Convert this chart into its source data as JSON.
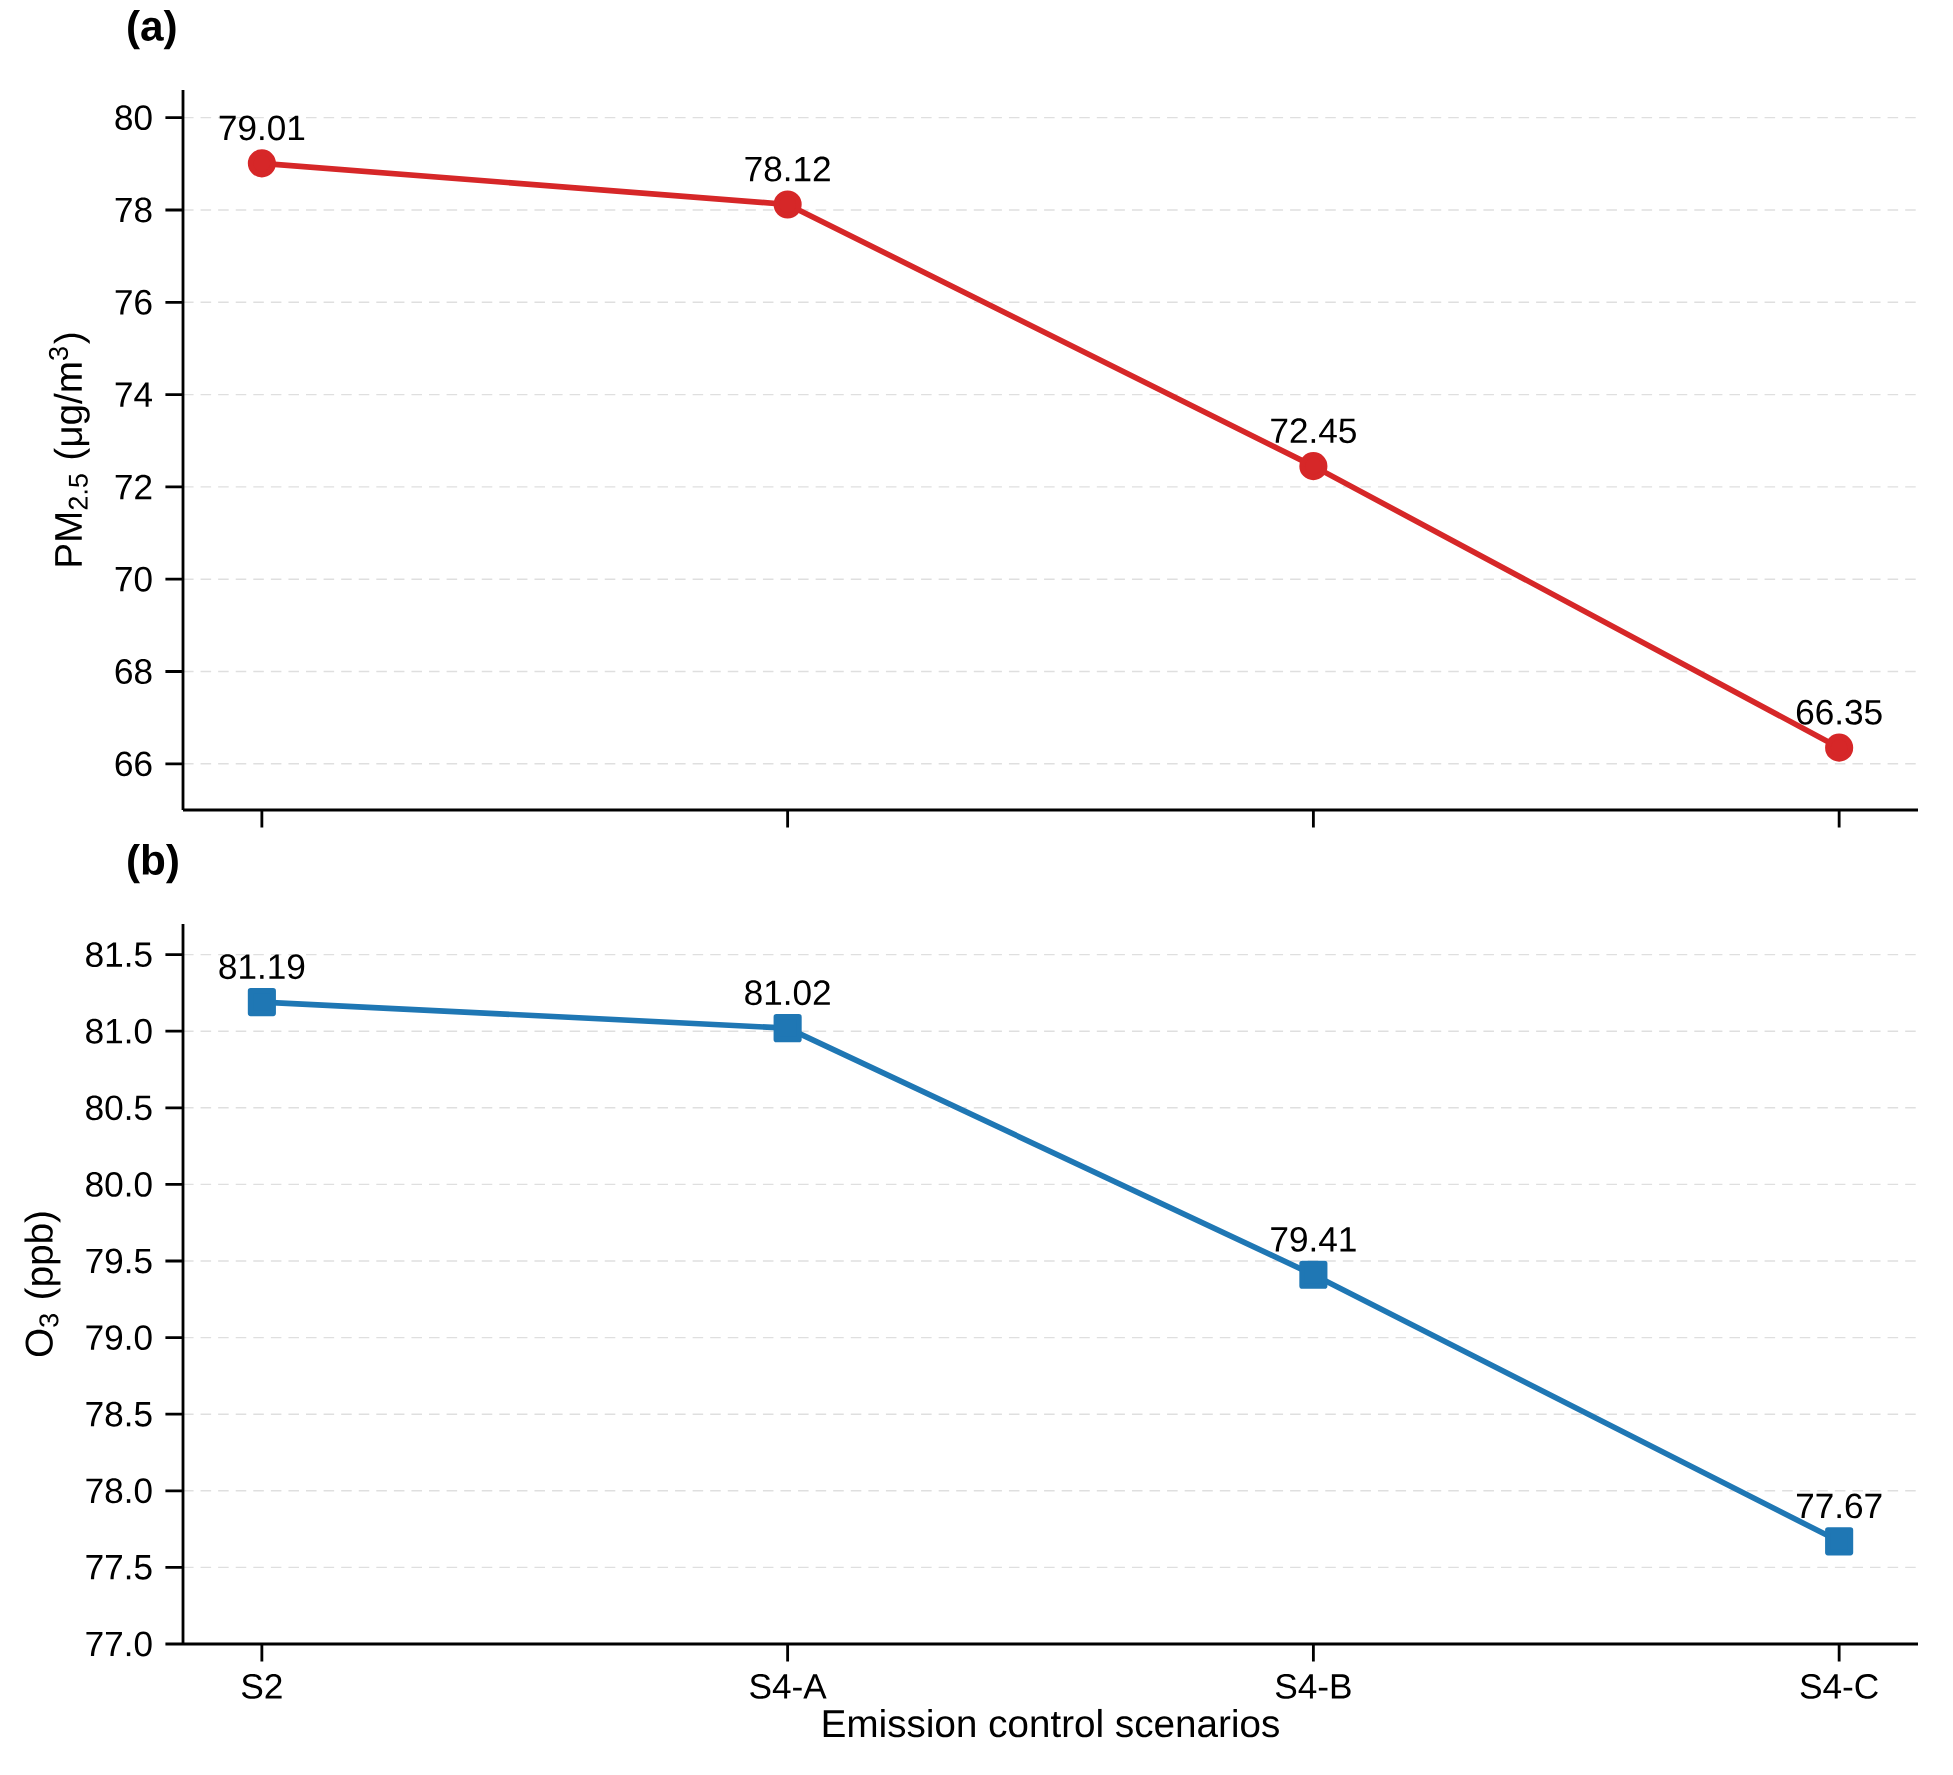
{
  "chart_data": [
    {
      "type": "line",
      "title": "(a)",
      "ylabel": "PM$_{2.5}$ (μg/m$^{3}$)",
      "categories": [
        null,
        null,
        null,
        null
      ],
      "series": [
        {
          "color": "#d62728",
          "values": [
            79.01,
            78.12,
            72.45,
            66.35
          ]
        }
      ],
      "ylim": [
        65.0,
        80.6
      ],
      "yticks": [
        66,
        68,
        70,
        72,
        74,
        76,
        78,
        80
      ],
      "grid": "y",
      "marker": "circle",
      "data_labels": true,
      "tick_labels": "y"
    },
    {
      "type": "line",
      "title": "(b)",
      "xlabel": "Emission control scenarios",
      "ylabel": "O$_{3}$ (ppb)",
      "categories": [
        "S2",
        "S4-A",
        "S4-B",
        "S4-C"
      ],
      "series": [
        {
          "color": "#1f77b4",
          "values": [
            81.19,
            81.02,
            79.41,
            77.67
          ]
        }
      ],
      "ylim": [
        77.0,
        81.7
      ],
      "yticks": [
        {
          "value": 77,
          "label": "77.0"
        },
        77.5,
        {
          "value": 78,
          "label": "78.0"
        },
        78.5,
        {
          "value": 79,
          "label": "79.0"
        },
        79.5,
        {
          "value": 80,
          "label": "80.0"
        },
        80.5,
        {
          "value": 81,
          "label": "81.0"
        },
        81.5
      ],
      "grid": "y",
      "marker": "square",
      "data_labels": true
    }
  ]
}
